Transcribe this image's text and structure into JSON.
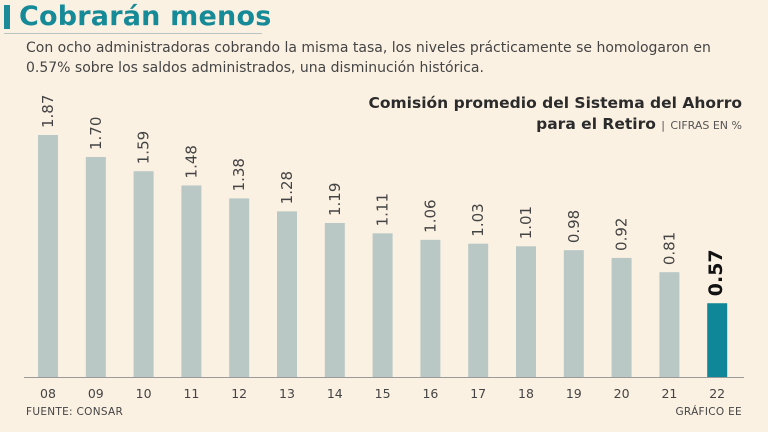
{
  "header": {
    "headline": "Cobrarán menos",
    "deck": "Con ocho administradoras cobrando la misma tasa, los niveles prácticamente se homologaron en 0.57% sobre los saldos administrados, una disminución histórica."
  },
  "chart_title": {
    "line1": "Comisión promedio del Sistema del Ahorro",
    "line2": "para el Retiro",
    "separator": "|",
    "unit": "CIFRAS EN %"
  },
  "footer": {
    "source": "FUENTE: CONSAR",
    "credit": "GRÁFICO EE"
  },
  "colors": {
    "background": "#fbf1e3",
    "bar": "#b9c7c5",
    "highlight": "#0f8799",
    "accent": "#1c8a99"
  },
  "chart_data": {
    "type": "bar",
    "title": "Comisión promedio del Sistema del Ahorro para el Retiro",
    "unit": "CIFRAS EN %",
    "categories": [
      "08",
      "09",
      "10",
      "11",
      "12",
      "13",
      "14",
      "15",
      "16",
      "17",
      "18",
      "19",
      "20",
      "21",
      "22"
    ],
    "values": [
      1.87,
      1.7,
      1.59,
      1.48,
      1.38,
      1.28,
      1.19,
      1.11,
      1.06,
      1.03,
      1.01,
      0.98,
      0.92,
      0.81,
      0.57
    ],
    "labels": [
      "1.87",
      "1.70",
      "1.59",
      "1.48",
      "1.38",
      "1.28",
      "1.19",
      "1.11",
      "1.06",
      "1.03",
      "1.01",
      "0.98",
      "0.92",
      "0.81",
      "0.57"
    ],
    "highlight_index": 14,
    "ylim": [
      0,
      1.87
    ],
    "grid": false,
    "legend": "none"
  }
}
